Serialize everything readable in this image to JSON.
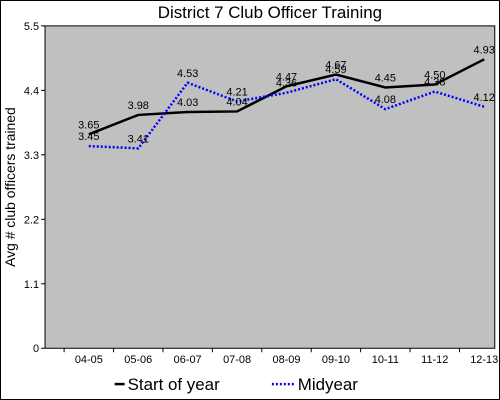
{
  "chart_data": {
    "type": "line",
    "title": "District 7 Club Officer Training",
    "ylabel": "Avg # club officers trained",
    "xlabel": "",
    "categories": [
      "04-05",
      "05-06",
      "06-07",
      "07-08",
      "08-09",
      "09-10",
      "10-11",
      "11-12",
      "12-13"
    ],
    "ylim": [
      0,
      5.5
    ],
    "yticks": [
      "0",
      "1.1",
      "2.2",
      "3.3",
      "4.4",
      "5.5"
    ],
    "grid": false,
    "background_color": "#c0c0c0",
    "legend_position": "bottom",
    "series": [
      {
        "name": "Start of year",
        "color": "#000000",
        "style": "solid",
        "values": [
          3.65,
          3.98,
          4.03,
          4.04,
          4.47,
          4.67,
          4.45,
          4.5,
          4.93
        ],
        "labels": [
          "3.65",
          "3.98",
          "4.03",
          "4.04",
          "4.47",
          "4.67",
          "4.45",
          "4.50",
          "4.93"
        ]
      },
      {
        "name": "Midyear",
        "color": "#0000ff",
        "style": "dotted",
        "values": [
          3.45,
          3.41,
          4.53,
          4.21,
          4.36,
          4.59,
          4.08,
          4.38,
          4.12
        ],
        "labels": [
          "3.45",
          "3.41",
          "4.53",
          "4.21",
          "4.36",
          "4.59",
          "4.08",
          "4.38",
          "4.12"
        ]
      }
    ]
  }
}
